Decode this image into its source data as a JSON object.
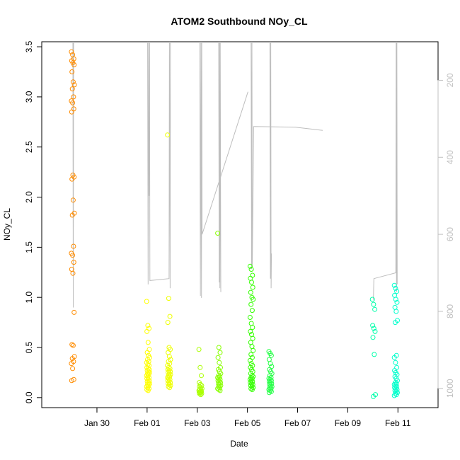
{
  "chart_data": {
    "type": "scatter",
    "title": "ATOM2 Southbound NOy_CL",
    "xlabel": "Date",
    "ylabel": "NOy_CL",
    "xlim_days": [
      -11.0,
      35.0
    ],
    "ylim": [
      -0.1,
      3.55
    ],
    "y_ticks": [
      0.0,
      0.5,
      1.0,
      1.5,
      2.0,
      2.5,
      3.0,
      3.5
    ],
    "y_tick_labels": [
      "0.0",
      "0.5",
      "1.0",
      "1.5",
      "2.0",
      "2.5",
      "3.0",
      "3.5"
    ],
    "x_ticks": [
      {
        "label": "Jan 30",
        "date": "2017-01-30"
      },
      {
        "label": "Feb 01",
        "date": "2017-02-01"
      },
      {
        "label": "Feb 03",
        "date": "2017-02-03"
      },
      {
        "label": "Feb 05",
        "date": "2017-02-05"
      },
      {
        "label": "Feb 07",
        "date": "2017-02-07"
      },
      {
        "label": "Feb 09",
        "date": "2017-02-09"
      },
      {
        "label": "Feb 11",
        "date": "2017-02-11"
      }
    ],
    "right_axis": {
      "ticks": [
        200,
        400,
        600,
        800,
        1000
      ],
      "range": [
        100,
        1050
      ],
      "reversed": true,
      "color": "#c0c0c0"
    },
    "flights": [
      {
        "date": "2017-01-29T01:00",
        "color": "#ff8c00",
        "values": [
          3.45,
          3.42,
          3.38,
          3.36,
          3.34,
          3.32,
          3.25,
          3.15,
          3.12,
          3.08,
          3.0,
          2.96,
          2.94,
          2.88,
          2.85,
          2.22,
          2.2,
          2.18,
          1.97,
          1.84,
          1.82,
          1.51,
          1.44,
          1.42,
          1.35,
          1.28,
          1.24,
          0.85,
          0.53,
          0.52,
          0.41,
          0.39,
          0.36,
          0.34,
          0.29,
          0.18,
          0.17
        ]
      },
      {
        "date": "2017-02-01T01:00",
        "color": "#ffff00",
        "values": [
          0.96,
          0.72,
          0.69,
          0.66,
          0.55,
          0.48,
          0.45,
          0.42,
          0.4,
          0.38,
          0.36,
          0.35,
          0.33,
          0.32,
          0.3,
          0.29,
          0.28,
          0.27,
          0.26,
          0.25,
          0.24,
          0.23,
          0.22,
          0.21,
          0.2,
          0.19,
          0.18,
          0.17,
          0.16,
          0.15,
          0.14,
          0.13,
          0.12,
          0.11,
          0.1,
          0.09,
          0.08,
          0.07
        ]
      },
      {
        "date": "2017-02-01T21:00",
        "color": "#eeff00",
        "values": [
          2.62,
          0.99,
          0.81,
          0.75,
          0.5,
          0.48,
          0.45,
          0.41,
          0.38,
          0.36,
          0.34,
          0.32,
          0.3,
          0.29,
          0.28,
          0.27,
          0.26,
          0.25,
          0.24,
          0.23,
          0.22,
          0.21,
          0.2,
          0.19,
          0.18,
          0.17,
          0.16,
          0.15,
          0.14,
          0.13,
          0.12,
          0.11,
          0.1
        ]
      },
      {
        "date": "2017-02-03T03:00",
        "color": "#aaff00",
        "values": [
          0.48,
          0.3,
          0.22,
          0.15,
          0.13,
          0.12,
          0.11,
          0.1,
          0.09,
          0.08,
          0.07,
          0.07,
          0.06,
          0.06,
          0.05,
          0.05,
          0.04,
          0.04,
          0.03
        ]
      },
      {
        "date": "2017-02-03T21:00",
        "color": "#88ff00",
        "values": [
          1.64,
          0.5,
          0.45,
          0.4,
          0.35,
          0.3,
          0.28,
          0.26,
          0.24,
          0.22,
          0.21,
          0.2,
          0.19,
          0.18,
          0.17,
          0.16,
          0.15,
          0.14,
          0.13,
          0.12,
          0.11,
          0.1,
          0.09,
          0.08,
          0.07
        ]
      },
      {
        "date": "2017-02-05T04:00",
        "color": "#33ff00",
        "values": [
          1.31,
          1.28,
          1.22,
          1.19,
          1.15,
          1.1,
          1.05,
          1.0,
          0.98,
          0.93,
          0.87,
          0.8,
          0.74,
          0.7,
          0.66,
          0.63,
          0.59,
          0.55,
          0.51,
          0.47,
          0.43,
          0.4,
          0.37,
          0.34,
          0.32,
          0.3,
          0.28,
          0.26,
          0.24,
          0.22,
          0.21,
          0.2,
          0.19,
          0.18,
          0.17,
          0.16,
          0.15,
          0.14,
          0.13,
          0.12,
          0.11,
          0.1,
          0.09,
          0.08
        ]
      },
      {
        "date": "2017-02-05T22:00",
        "color": "#22ff44",
        "values": [
          0.46,
          0.44,
          0.42,
          0.38,
          0.34,
          0.31,
          0.28,
          0.26,
          0.24,
          0.22,
          0.2,
          0.19,
          0.18,
          0.17,
          0.16,
          0.15,
          0.14,
          0.13,
          0.12,
          0.11,
          0.1,
          0.09,
          0.08,
          0.07,
          0.06,
          0.05
        ]
      },
      {
        "date": "2017-02-10T01:00",
        "color": "#00ffaa",
        "values": [
          0.98,
          0.93,
          0.88,
          0.72,
          0.69,
          0.66,
          0.6,
          0.43,
          0.03,
          0.01
        ]
      },
      {
        "date": "2017-02-10T22:00",
        "color": "#00ffcc",
        "values": [
          1.12,
          1.09,
          1.06,
          1.02,
          0.98,
          0.95,
          0.9,
          0.86,
          0.77,
          0.75,
          0.42,
          0.4,
          0.35,
          0.3,
          0.27,
          0.25,
          0.23,
          0.21,
          0.19,
          0.17,
          0.15,
          0.14,
          0.13,
          0.12,
          0.11,
          0.1,
          0.09,
          0.08,
          0.07,
          0.06,
          0.05,
          0.04,
          0.03,
          0.02
        ]
      }
    ],
    "pressure_tracks": [
      [
        [
          "2017-01-29T01:00",
          100
        ],
        [
          "2017-01-29T01:20",
          790
        ],
        [
          "2017-01-29T01:40",
          100
        ]
      ],
      [
        [
          "2017-02-01T00:30",
          100
        ],
        [
          "2017-02-01T01:00",
          730
        ],
        [
          "2017-02-01T01:30",
          100
        ],
        [
          "2017-02-01T02:00",
          500
        ],
        [
          "2017-02-01T02:20",
          100
        ],
        [
          "2017-02-01T02:40",
          720
        ],
        [
          "2017-02-01T21:00",
          715
        ],
        [
          "2017-02-01T21:20",
          100
        ],
        [
          "2017-02-01T22:00",
          740
        ],
        [
          "2017-02-01T22:20",
          100
        ]
      ],
      [
        [
          "2017-02-03T02:30",
          100
        ],
        [
          "2017-02-03T03:00",
          760
        ],
        [
          "2017-02-03T03:30",
          100
        ],
        [
          "2017-02-03T04:00",
          765
        ],
        [
          "2017-02-03T04:20",
          100
        ],
        [
          "2017-02-03T04:40",
          600
        ],
        [
          "2017-02-05T00:30",
          230
        ]
      ],
      [
        [
          "2017-02-03T20:30",
          100
        ],
        [
          "2017-02-03T21:00",
          725
        ],
        [
          "2017-02-03T21:20",
          100
        ],
        [
          "2017-02-03T21:40",
          740
        ],
        [
          "2017-02-03T22:00",
          100
        ],
        [
          "2017-02-03T22:30",
          750
        ]
      ],
      [
        [
          "2017-02-05T03:30",
          100
        ],
        [
          "2017-02-05T04:00",
          690
        ],
        [
          "2017-02-05T04:20",
          100
        ],
        [
          "2017-02-05T04:40",
          680
        ],
        [
          "2017-02-05T06:00",
          320
        ],
        [
          "2017-02-06T22:00",
          322
        ],
        [
          "2017-02-08T00:00",
          330
        ]
      ],
      [
        [
          "2017-02-05T21:30",
          100
        ],
        [
          "2017-02-05T22:00",
          715
        ],
        [
          "2017-02-05T22:20",
          100
        ],
        [
          "2017-02-05T22:40",
          740
        ],
        [
          "2017-02-05T23:00",
          650
        ]
      ],
      [
        [
          "2017-02-10T00:30",
          770
        ],
        [
          "2017-02-10T01:00",
          715
        ],
        [
          "2017-02-10T22:00",
          700
        ],
        [
          "2017-02-10T22:20",
          100
        ],
        [
          "2017-02-10T22:40",
          750
        ],
        [
          "2017-02-10T23:00",
          100
        ],
        [
          "2017-02-10T23:20",
          730
        ]
      ]
    ]
  }
}
